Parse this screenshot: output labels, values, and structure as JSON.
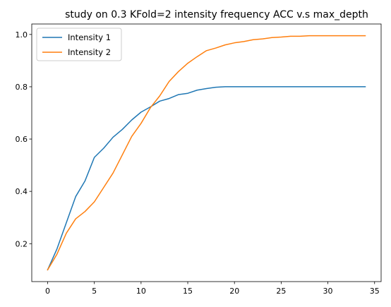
{
  "chart_data": {
    "type": "line",
    "title": "study on 0.3 KFold=2 intensity frequency ACC v.s max_depth",
    "xlabel": "",
    "ylabel": "",
    "xlim": [
      -1.7,
      35.7
    ],
    "ylim": [
      0.055,
      1.04
    ],
    "xticks": [
      0,
      5,
      10,
      15,
      20,
      25,
      30,
      35
    ],
    "yticks": [
      0.2,
      0.4,
      0.6,
      0.8,
      1.0
    ],
    "ytick_labels": [
      "0.2",
      "0.4",
      "0.6",
      "0.8",
      "1.0"
    ],
    "grid": false,
    "legend_position": "top-left",
    "x": [
      0,
      1,
      2,
      3,
      4,
      5,
      6,
      7,
      8,
      9,
      10,
      11,
      12,
      13,
      14,
      15,
      16,
      17,
      18,
      19,
      20,
      21,
      22,
      23,
      24,
      25,
      26,
      27,
      28,
      29,
      30,
      31,
      32,
      33,
      34
    ],
    "series": [
      {
        "name": "Intensity 1",
        "color": "#1f77b4",
        "values": [
          0.1,
          0.18,
          0.28,
          0.38,
          0.44,
          0.53,
          0.565,
          0.607,
          0.637,
          0.673,
          0.703,
          0.723,
          0.745,
          0.755,
          0.77,
          0.775,
          0.787,
          0.793,
          0.798,
          0.8,
          0.8,
          0.8,
          0.8,
          0.8,
          0.8,
          0.8,
          0.8,
          0.8,
          0.8,
          0.8,
          0.8,
          0.8,
          0.8,
          0.8,
          0.8
        ]
      },
      {
        "name": "Intensity 2",
        "color": "#ff7f0e",
        "values": [
          0.1,
          0.16,
          0.24,
          0.295,
          0.323,
          0.36,
          0.415,
          0.47,
          0.54,
          0.61,
          0.66,
          0.72,
          0.765,
          0.82,
          0.858,
          0.89,
          0.915,
          0.938,
          0.948,
          0.96,
          0.968,
          0.973,
          0.98,
          0.983,
          0.988,
          0.99,
          0.993,
          0.993,
          0.995,
          0.995,
          0.995,
          0.995,
          0.995,
          0.995,
          0.995
        ]
      }
    ]
  }
}
